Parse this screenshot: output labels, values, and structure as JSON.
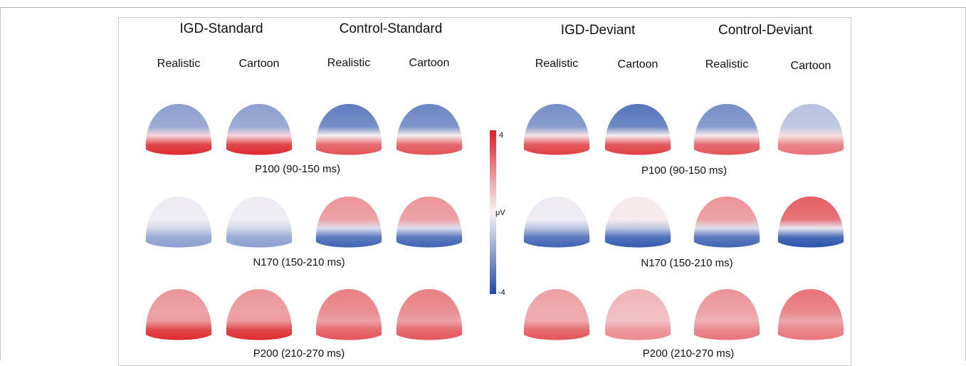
{
  "groups": [
    {
      "label": "IGD-Standard",
      "conditions": [
        "Realistic",
        "Cartoon"
      ]
    },
    {
      "label": "Control-Standard",
      "conditions": [
        "Realistic",
        "Cartoon"
      ]
    },
    {
      "label": "IGD-Deviant",
      "conditions": [
        "Realistic",
        "Cartoon"
      ]
    },
    {
      "label": "Control-Deviant",
      "conditions": [
        "Realistic",
        "Cartoon"
      ]
    }
  ],
  "windows": [
    {
      "label": "P100 (90-150 ms)"
    },
    {
      "label": "N170 (150-210 ms)"
    },
    {
      "label": "P200 (210-270 ms)"
    }
  ],
  "colorbar": {
    "max_label": "4",
    "unit_label": "μV",
    "min_label": "-4",
    "positive_color": "#dc1f25",
    "neutral_color": "#f8f4f6",
    "negative_color": "#1f4aa8"
  },
  "maps": [
    {
      "window": "P100",
      "group": "IGD-Standard",
      "condition": "Realistic",
      "frontal": -0.5,
      "occipital": 0.95
    },
    {
      "window": "P100",
      "group": "IGD-Standard",
      "condition": "Cartoon",
      "frontal": -0.5,
      "occipital": 0.95
    },
    {
      "window": "P100",
      "group": "Control-Standard",
      "condition": "Realistic",
      "frontal": -0.7,
      "occipital": 0.75
    },
    {
      "window": "P100",
      "group": "Control-Standard",
      "condition": "Cartoon",
      "frontal": -0.65,
      "occipital": 0.75
    },
    {
      "window": "P100",
      "group": "IGD-Deviant",
      "condition": "Realistic",
      "frontal": -0.6,
      "occipital": 0.85
    },
    {
      "window": "P100",
      "group": "IGD-Deviant",
      "condition": "Cartoon",
      "frontal": -0.75,
      "occipital": 0.85
    },
    {
      "window": "P100",
      "group": "Control-Deviant",
      "condition": "Realistic",
      "frontal": -0.6,
      "occipital": 0.75
    },
    {
      "window": "P100",
      "group": "Control-Deviant",
      "condition": "Cartoon",
      "frontal": -0.3,
      "occipital": 0.6
    },
    {
      "window": "N170",
      "group": "IGD-Standard",
      "condition": "Realistic",
      "frontal": -0.05,
      "occipital": -0.5
    },
    {
      "window": "N170",
      "group": "IGD-Standard",
      "condition": "Cartoon",
      "frontal": -0.05,
      "occipital": -0.5
    },
    {
      "window": "N170",
      "group": "Control-Standard",
      "condition": "Realistic",
      "frontal": 0.45,
      "occipital": -0.85
    },
    {
      "window": "N170",
      "group": "Control-Standard",
      "condition": "Cartoon",
      "frontal": 0.45,
      "occipital": -0.85
    },
    {
      "window": "N170",
      "group": "IGD-Deviant",
      "condition": "Realistic",
      "frontal": -0.05,
      "occipital": -0.85
    },
    {
      "window": "N170",
      "group": "IGD-Deviant",
      "condition": "Cartoon",
      "frontal": 0.05,
      "occipital": -0.9
    },
    {
      "window": "N170",
      "group": "Control-Deviant",
      "condition": "Realistic",
      "frontal": 0.45,
      "occipital": -0.85
    },
    {
      "window": "N170",
      "group": "Control-Deviant",
      "condition": "Cartoon",
      "frontal": 0.7,
      "occipital": -0.95
    },
    {
      "window": "P200",
      "group": "IGD-Standard",
      "condition": "Realistic",
      "frontal": 0.45,
      "occipital": 0.95
    },
    {
      "window": "P200",
      "group": "IGD-Standard",
      "condition": "Cartoon",
      "frontal": 0.45,
      "occipital": 0.95
    },
    {
      "window": "P200",
      "group": "Control-Standard",
      "condition": "Realistic",
      "frontal": 0.55,
      "occipital": 0.75
    },
    {
      "window": "P200",
      "group": "Control-Standard",
      "condition": "Cartoon",
      "frontal": 0.55,
      "occipital": 0.75
    },
    {
      "window": "P200",
      "group": "IGD-Deviant",
      "condition": "Realistic",
      "frontal": 0.4,
      "occipital": 0.75
    },
    {
      "window": "P200",
      "group": "IGD-Deviant",
      "condition": "Cartoon",
      "frontal": 0.3,
      "occipital": 0.5
    },
    {
      "window": "P200",
      "group": "Control-Deviant",
      "condition": "Realistic",
      "frontal": 0.45,
      "occipital": 0.6
    },
    {
      "window": "P200",
      "group": "Control-Deviant",
      "condition": "Cartoon",
      "frontal": 0.6,
      "occipital": 0.6
    }
  ]
}
